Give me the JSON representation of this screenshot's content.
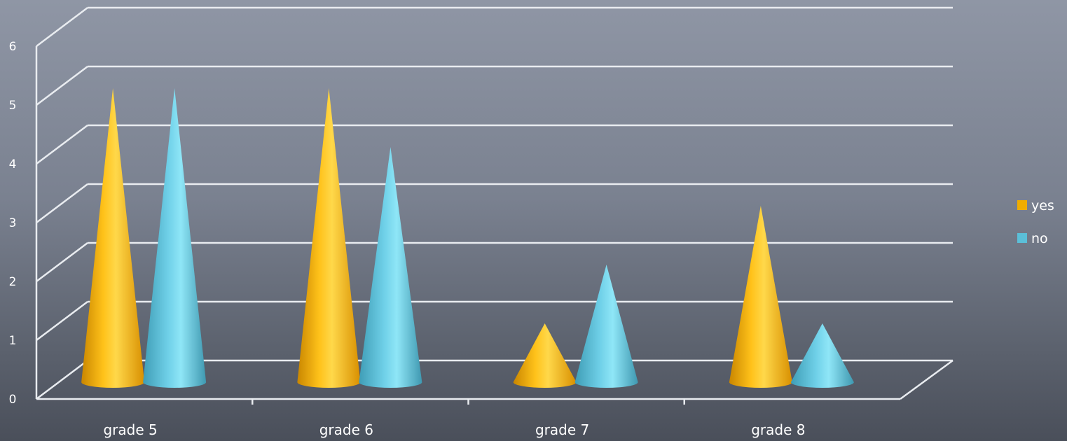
{
  "chart_data": {
    "type": "bar",
    "style": "3d-cone",
    "categories": [
      "grade 5",
      "grade 6",
      "grade 7",
      "grade 8"
    ],
    "series": [
      {
        "name": "yes",
        "values": [
          5,
          5,
          1,
          3
        ],
        "color": "#f0ad00"
      },
      {
        "name": "no",
        "values": [
          5,
          4,
          2,
          1
        ],
        "color": "#5bbfd8"
      }
    ],
    "y_ticks": [
      "0",
      "1",
      "2",
      "3",
      "4",
      "5",
      "6"
    ],
    "ylim": [
      0,
      6
    ],
    "grid": true,
    "legend_position": "right"
  }
}
